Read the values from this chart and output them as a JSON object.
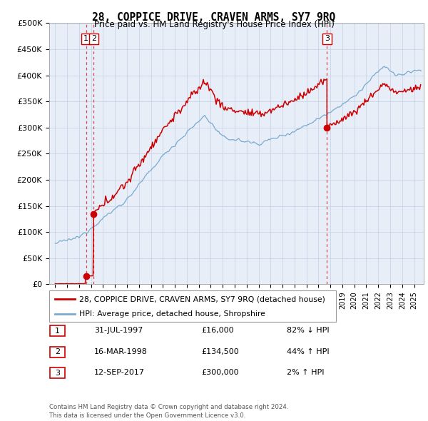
{
  "title": "28, COPPICE DRIVE, CRAVEN ARMS, SY7 9RQ",
  "subtitle": "Price paid vs. HM Land Registry's House Price Index (HPI)",
  "ylabel_ticks": [
    "£0",
    "£50K",
    "£100K",
    "£150K",
    "£200K",
    "£250K",
    "£300K",
    "£350K",
    "£400K",
    "£450K",
    "£500K"
  ],
  "ytick_values": [
    0,
    50000,
    100000,
    150000,
    200000,
    250000,
    300000,
    350000,
    400000,
    450000,
    500000
  ],
  "sale_dates_num": [
    1997.58,
    1998.21,
    2017.71
  ],
  "sale_prices": [
    16000,
    134500,
    300000
  ],
  "sale_labels": [
    "1",
    "2",
    "3"
  ],
  "legend_line1": "28, COPPICE DRIVE, CRAVEN ARMS, SY7 9RQ (detached house)",
  "legend_line2": "HPI: Average price, detached house, Shropshire",
  "table_rows": [
    [
      "1",
      "31-JUL-1997",
      "£16,000",
      "82% ↓ HPI"
    ],
    [
      "2",
      "16-MAR-1998",
      "£134,500",
      "44% ↑ HPI"
    ],
    [
      "3",
      "12-SEP-2017",
      "£300,000",
      "2% ↑ HPI"
    ]
  ],
  "footnote": "Contains HM Land Registry data © Crown copyright and database right 2024.\nThis data is licensed under the Open Government Licence v3.0.",
  "line_color_red": "#cc0000",
  "line_color_blue": "#7aaad0",
  "background_color": "#ffffff",
  "chart_bg_color": "#e8eef8",
  "grid_color": "#c8d4e8",
  "xmin": 1994.5,
  "xmax": 2025.8,
  "ymin": 0,
  "ymax": 500000
}
